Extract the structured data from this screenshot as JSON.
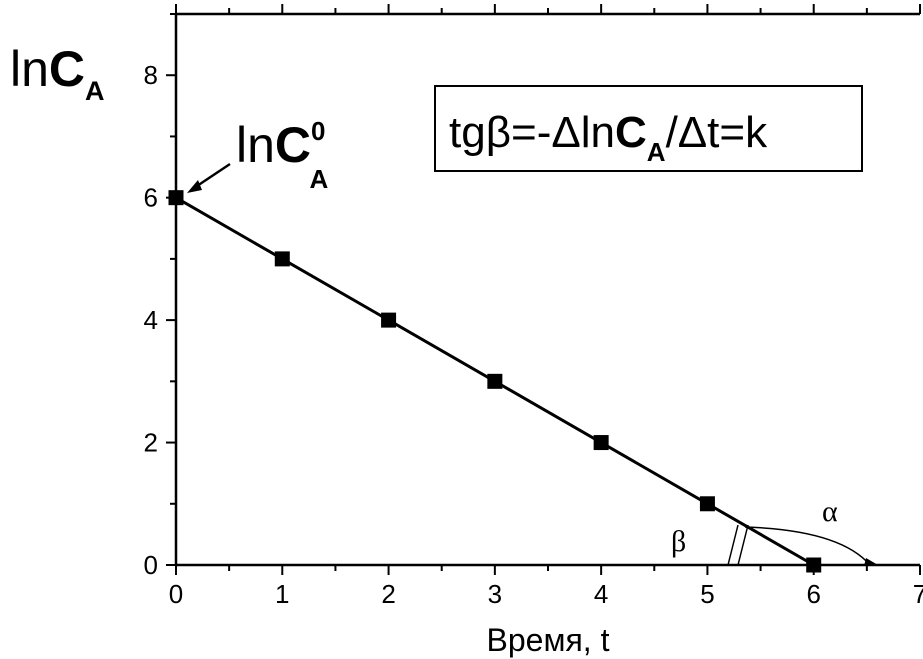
{
  "chart_data": {
    "type": "line",
    "x": [
      0,
      1,
      2,
      3,
      4,
      5,
      6
    ],
    "series": [
      {
        "values": [
          6,
          5,
          4,
          3,
          2,
          1,
          0
        ],
        "color": "#000000",
        "marker": "square"
      }
    ],
    "xlabel": "Время, t",
    "ylabel": {
      "main": "ln",
      "bold": "C",
      "sub": "A"
    },
    "xlim": [
      0,
      7
    ],
    "ylim": [
      0,
      9
    ],
    "xticks": [
      "0",
      "1",
      "2",
      "3",
      "4",
      "5",
      "6",
      "7"
    ],
    "yticks": [
      "0",
      "2",
      "4",
      "6",
      "8"
    ],
    "grid": false,
    "annotations": {
      "start_point": {
        "main": "ln",
        "bold": "C",
        "sup": "0",
        "sub": "A"
      },
      "formula": {
        "prefix": "tgβ=-Δln",
        "bold": "C",
        "sub": "A",
        "suffix": "/Δt=k"
      },
      "alpha": "α",
      "beta": "β"
    }
  }
}
